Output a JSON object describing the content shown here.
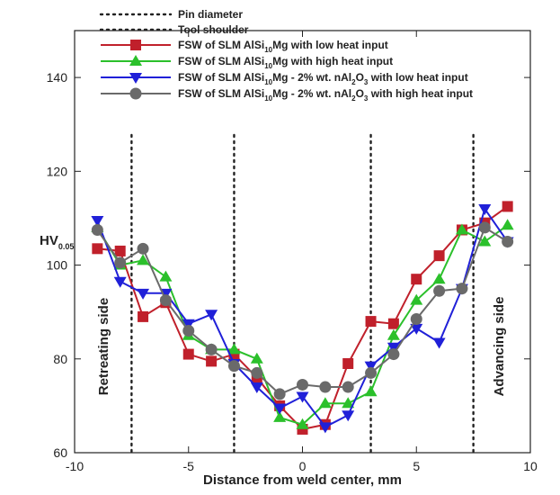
{
  "chart_data": {
    "type": "line",
    "xlabel": "Distance from weld center, mm",
    "ylabel": {
      "main": "HV",
      "sub": "0.05"
    },
    "xlim": [
      -10,
      10
    ],
    "ylim": [
      60,
      150
    ],
    "xticks": [
      -10,
      -5,
      0,
      5,
      10
    ],
    "yticks": [
      60,
      80,
      100,
      120,
      140
    ],
    "grid": false,
    "legend_position": "top",
    "reference_lines": [
      {
        "name": "Pin diameter",
        "x": [
          -3,
          3
        ],
        "style": "dotted"
      },
      {
        "name": "Tool shoulder",
        "x": [
          -7.5,
          7.5
        ],
        "style": "dotted"
      }
    ],
    "annotations": {
      "left": "Retreating side",
      "right": "Advancing side"
    },
    "series": [
      {
        "name_parts": [
          {
            "t": "FSW of SLM AlSi"
          },
          {
            "t": "10",
            "sub": true
          },
          {
            "t": "Mg with low heat input"
          }
        ],
        "color": "#c0202b",
        "marker": "square",
        "x": [
          -9,
          -8,
          -7,
          -6,
          -5,
          -4,
          -3,
          -2,
          -1,
          0,
          1,
          2,
          3,
          4,
          5,
          6,
          7,
          8,
          9
        ],
        "values": [
          103.5,
          103,
          89,
          92,
          81,
          79.5,
          81,
          76,
          70,
          65,
          66,
          79,
          88,
          87.5,
          97,
          102,
          107.5,
          109,
          112.5
        ]
      },
      {
        "name_parts": [
          {
            "t": "FSW of SLM AlSi"
          },
          {
            "t": "10",
            "sub": true
          },
          {
            "t": "Mg with high heat input"
          }
        ],
        "color": "#2bc02b",
        "marker": "triangle-up",
        "x": [
          -9,
          -8,
          -7,
          -6,
          -5,
          -4,
          -3,
          -2,
          -1,
          0,
          1,
          2,
          3,
          4,
          5,
          6,
          7,
          8,
          9
        ],
        "values": [
          108,
          100,
          101,
          97.5,
          85,
          82,
          82,
          80,
          67.5,
          66,
          70.5,
          70.5,
          73,
          85,
          92.5,
          97,
          107.5,
          105,
          108.5
        ]
      },
      {
        "name_parts": [
          {
            "t": "FSW of SLM AlSi"
          },
          {
            "t": "10",
            "sub": true
          },
          {
            "t": "Mg  - 2% wt. nAl"
          },
          {
            "t": "2",
            "sub": true
          },
          {
            "t": "O"
          },
          {
            "t": "3",
            "sub": true
          },
          {
            "t": " with low heat input"
          }
        ],
        "color": "#2020d8",
        "marker": "triangle-down",
        "x": [
          -9,
          -8,
          -7,
          -6,
          -5,
          -4,
          -3,
          -2,
          -1,
          0,
          1,
          2,
          3,
          4,
          5,
          6,
          7,
          8,
          9
        ],
        "values": [
          109.5,
          96.5,
          94,
          94,
          87.5,
          89.5,
          79,
          74,
          69.5,
          72,
          65.5,
          68,
          78.5,
          82.5,
          86.5,
          83.5,
          95,
          112,
          105
        ]
      },
      {
        "name_parts": [
          {
            "t": "FSW of SLM AlSi"
          },
          {
            "t": "10",
            "sub": true
          },
          {
            "t": "Mg  - 2% wt. nAl"
          },
          {
            "t": "2",
            "sub": true
          },
          {
            "t": "O"
          },
          {
            "t": "3",
            "sub": true
          },
          {
            "t": " with high heat input"
          }
        ],
        "color": "#6a6a6a",
        "marker": "circle",
        "x": [
          -9,
          -8,
          -7,
          -6,
          -5,
          -4,
          -3,
          -2,
          -1,
          0,
          1,
          2,
          3,
          4,
          5,
          6,
          7,
          8,
          9
        ],
        "values": [
          107.5,
          100.5,
          103.5,
          92.5,
          86,
          82,
          78.5,
          77,
          72.5,
          74.5,
          74,
          74,
          77,
          81,
          88.5,
          94.5,
          95,
          108,
          105
        ]
      }
    ]
  }
}
